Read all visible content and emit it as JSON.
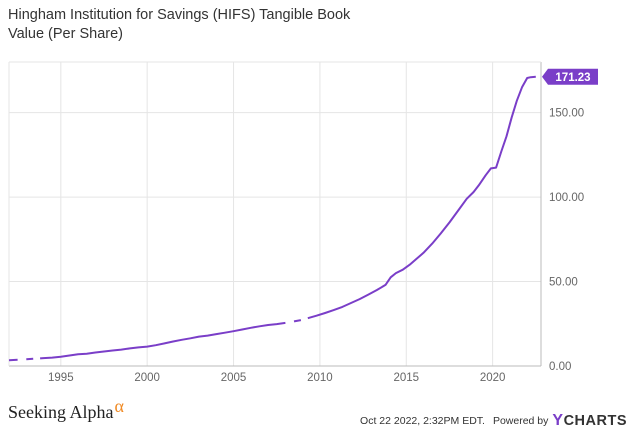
{
  "header": {
    "title": "Hingham Institution for Savings (HIFS) Tangible Book Value (Per Share)"
  },
  "footer": {
    "brand": "Seeking Alpha",
    "brand_symbol": "α",
    "timestamp": "Oct 22 2022, 2:32PM EDT.",
    "powered_by": "Powered by",
    "ycharts_y": "Y",
    "ycharts_rest": "CHARTS"
  },
  "colors": {
    "line": "#7a3ec8",
    "grid": "#e5e5e5",
    "axis": "#bbbbbb",
    "badge": "#7a3ec8",
    "alpha": "#f08a24"
  },
  "chart_data": {
    "type": "line",
    "title": "Hingham Institution for Savings (HIFS) Tangible Book Value (Per Share)",
    "xlabel": "",
    "ylabel": "",
    "xlim": [
      1992.0,
      2022.8
    ],
    "ylim": [
      0,
      180
    ],
    "x_ticks": [
      1995,
      2000,
      2005,
      2010,
      2015,
      2020
    ],
    "x_tick_labels": [
      "1995",
      "2000",
      "2005",
      "2010",
      "2015",
      "2020"
    ],
    "y_ticks": [
      0,
      50,
      100,
      150
    ],
    "y_tick_labels": [
      "0.00",
      "50.00",
      "100.00",
      "150.00"
    ],
    "grid": "vertical-and-horizontal",
    "last_value_label": "171.23",
    "series": [
      {
        "segments": [
          {
            "x": [
              1992.0,
              1992.5
            ],
            "y": [
              3.4,
              3.7
            ]
          },
          {
            "x": [
              1993.0,
              1993.4
            ],
            "y": [
              4.0,
              4.3
            ]
          },
          {
            "x": [
              1993.8,
              1994.0,
              1994.5,
              1995.0,
              1995.5,
              1996.0,
              1996.5,
              1997.0,
              1997.5,
              1998.0,
              1998.5,
              1999.0,
              1999.5,
              2000.0,
              2000.5,
              2001.0,
              2001.5,
              2002.0,
              2002.5,
              2003.0,
              2003.5,
              2004.0,
              2004.5,
              2005.0,
              2005.5,
              2006.0,
              2006.5,
              2007.0,
              2007.5,
              2008.0
            ],
            "y": [
              4.5,
              4.7,
              5.0,
              5.5,
              6.2,
              6.9,
              7.3,
              8.0,
              8.6,
              9.2,
              9.7,
              10.4,
              11.0,
              11.5,
              12.3,
              13.4,
              14.5,
              15.5,
              16.4,
              17.4,
              18.0,
              18.9,
              19.7,
              20.6,
              21.6,
              22.6,
              23.5,
              24.3,
              24.8,
              25.5
            ]
          },
          {
            "x": [
              2008.5,
              2008.9
            ],
            "y": [
              26.4,
              27.2
            ]
          },
          {
            "x": [
              2009.3,
              2009.8,
              2010.3,
              2010.8,
              2011.3,
              2011.8,
              2012.3,
              2012.8,
              2013.3,
              2013.8,
              2014.1,
              2014.4,
              2014.8,
              2015.2,
              2015.6,
              2016.0,
              2016.5,
              2017.0,
              2017.5,
              2018.0,
              2018.5,
              2018.9,
              2019.2,
              2019.6,
              2019.9,
              2020.2,
              2020.5,
              2020.8,
              2021.1,
              2021.4,
              2021.7,
              2022.0,
              2022.2,
              2022.5
            ],
            "y": [
              28.3,
              29.8,
              31.4,
              33.1,
              35.0,
              37.3,
              39.6,
              42.3,
              45.0,
              48.0,
              52.5,
              55.0,
              57.0,
              60.0,
              63.5,
              67.0,
              72.5,
              78.5,
              85.0,
              92.0,
              99.0,
              103.0,
              107.0,
              113.0,
              117.0,
              117.5,
              127.0,
              136.0,
              147.0,
              157.0,
              165.0,
              170.5,
              171.0,
              171.23
            ]
          }
        ]
      }
    ]
  }
}
